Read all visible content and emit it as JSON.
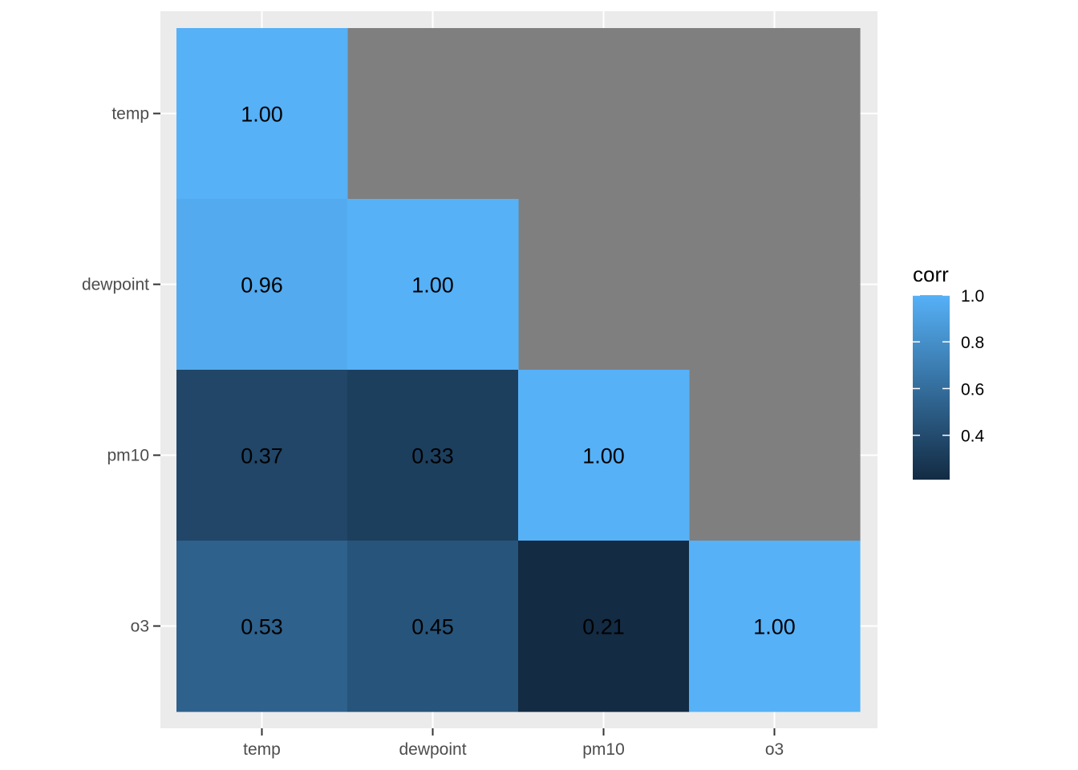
{
  "chart_data": {
    "type": "heatmap",
    "variables": [
      "temp",
      "dewpoint",
      "pm10",
      "o3"
    ],
    "x_categories": [
      "temp",
      "dewpoint",
      "pm10",
      "o3"
    ],
    "y_categories": [
      "temp",
      "dewpoint",
      "pm10",
      "o3"
    ],
    "cells": [
      {
        "x": "temp",
        "y": "temp",
        "value": 1.0,
        "label": "1.00"
      },
      {
        "x": "temp",
        "y": "dewpoint",
        "value": 0.96,
        "label": "0.96"
      },
      {
        "x": "dewpoint",
        "y": "dewpoint",
        "value": 1.0,
        "label": "1.00"
      },
      {
        "x": "temp",
        "y": "pm10",
        "value": 0.37,
        "label": "0.37"
      },
      {
        "x": "dewpoint",
        "y": "pm10",
        "value": 0.33,
        "label": "0.33"
      },
      {
        "x": "pm10",
        "y": "pm10",
        "value": 1.0,
        "label": "1.00"
      },
      {
        "x": "temp",
        "y": "o3",
        "value": 0.53,
        "label": "0.53"
      },
      {
        "x": "dewpoint",
        "y": "o3",
        "value": 0.45,
        "label": "0.45"
      },
      {
        "x": "pm10",
        "y": "o3",
        "value": 0.21,
        "label": "0.21"
      },
      {
        "x": "o3",
        "y": "o3",
        "value": 1.0,
        "label": "1.00"
      }
    ],
    "na_color": "#7f7f7f",
    "title": "",
    "xlabel": "",
    "ylabel": "",
    "grid": true,
    "legend": {
      "title": "corr",
      "placement": "right",
      "ticks": [
        {
          "value": 1.0,
          "label": "1.0"
        },
        {
          "value": 0.8,
          "label": "0.8"
        },
        {
          "value": 0.6,
          "label": "0.6"
        },
        {
          "value": 0.4,
          "label": "0.4"
        }
      ],
      "range": [
        0.21,
        1.0
      ],
      "low_color": "#132b43",
      "high_color": "#56b1f7"
    },
    "panel_background": "#ebebeb",
    "grid_color": "#ffffff"
  }
}
